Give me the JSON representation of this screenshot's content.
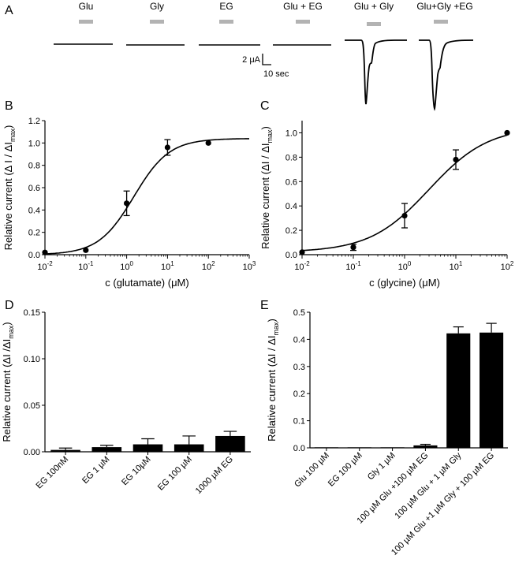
{
  "panel_labels": [
    "A",
    "B",
    "C",
    "D",
    "E"
  ],
  "colors": {
    "ink": "#000000",
    "stimulus_bar": "#b3b3b3",
    "stimulus_text": "#333333"
  },
  "panelA": {
    "stimuli": [
      "Glu",
      "Gly",
      "EG",
      "Glu + EG",
      "Glu + Gly",
      "Glu+Gly +EG"
    ],
    "scale_bar": {
      "current_label": "2 μA",
      "time_label": "10 sec"
    }
  },
  "chart_data": [
    {
      "panel": "B",
      "type": "scatter",
      "xscale": "log",
      "xlim": [
        0.01,
        1000
      ],
      "ylim": [
        0,
        1.2
      ],
      "xticks": [
        0.01,
        0.1,
        1,
        10,
        100,
        1000
      ],
      "xtick_labels": [
        {
          "base": "10",
          "exp": "-2"
        },
        {
          "base": "10",
          "exp": "-1"
        },
        {
          "base": "10",
          "exp": "0"
        },
        {
          "base": "10",
          "exp": "1"
        },
        {
          "base": "10",
          "exp": "2"
        },
        {
          "base": "10",
          "exp": "3"
        }
      ],
      "yticks": [
        0,
        0.2,
        0.4,
        0.6,
        0.8,
        1,
        1.2
      ],
      "ytick_labels": [
        "0.0",
        "0.2",
        "0.4",
        "0.6",
        "0.8",
        "1.0",
        "1.2"
      ],
      "xlabel": "c (glutamate) (μM)",
      "ylabel": {
        "main": "Relative current (Δ I / ΔI",
        "sub": "max",
        "close": ")"
      },
      "points": [
        {
          "x": 0.01,
          "y": 0.02,
          "err": 0
        },
        {
          "x": 0.1,
          "y": 0.04,
          "err": 0
        },
        {
          "x": 1,
          "y": 0.46,
          "err": 0.11
        },
        {
          "x": 10,
          "y": 0.96,
          "err": 0.07
        },
        {
          "x": 100,
          "y": 1.0,
          "err": 0
        }
      ],
      "fit": {
        "bottom": 0.0,
        "top": 1.04,
        "ec50": 1.5,
        "hill": 1.0
      }
    },
    {
      "panel": "C",
      "type": "scatter",
      "xscale": "log",
      "xlim": [
        0.01,
        100
      ],
      "ylim": [
        0,
        1.1
      ],
      "xticks": [
        0.01,
        0.1,
        1,
        10,
        100
      ],
      "xtick_labels": [
        {
          "base": "10",
          "exp": "-2"
        },
        {
          "base": "10",
          "exp": "-1"
        },
        {
          "base": "10",
          "exp": "0"
        },
        {
          "base": "10",
          "exp": "1"
        },
        {
          "base": "10",
          "exp": "2"
        }
      ],
      "yticks": [
        0,
        0.2,
        0.4,
        0.6,
        0.8,
        1
      ],
      "ytick_labels": [
        "0.0",
        "0.2",
        "0.4",
        "0.6",
        "0.8",
        "1.0"
      ],
      "xlabel": "c (glycine) (μM)",
      "ylabel": {
        "main": "Relative current (ΔI / ΔI",
        "sub": "max",
        "close": ")"
      },
      "points": [
        {
          "x": 0.01,
          "y": 0.02,
          "err": 0
        },
        {
          "x": 0.1,
          "y": 0.06,
          "err": 0.025
        },
        {
          "x": 1,
          "y": 0.32,
          "err": 0.1
        },
        {
          "x": 10,
          "y": 0.78,
          "err": 0.08
        },
        {
          "x": 100,
          "y": 1.0,
          "err": 0
        }
      ],
      "fit": {
        "bottom": 0.02,
        "top": 1.05,
        "ec50": 3.0,
        "hill": 0.75
      }
    },
    {
      "panel": "D",
      "type": "bar",
      "ylim": [
        0,
        0.15
      ],
      "yticks": [
        0,
        0.05,
        0.1,
        0.15
      ],
      "ytick_labels": [
        "0.00",
        "0.05",
        "0.10",
        "0.15"
      ],
      "ylabel": {
        "main": "Relative current (ΔI /ΔI",
        "sub": "max",
        "close": ")"
      },
      "categories": [
        "EG 100nM",
        "EG 1 µM",
        "EG 10µM",
        "EG 100 µM",
        "1000 µM EG"
      ],
      "values": [
        0.002,
        0.005,
        0.008,
        0.008,
        0.017
      ],
      "errors": [
        0.002,
        0.002,
        0.006,
        0.009,
        0.005
      ]
    },
    {
      "panel": "E",
      "type": "bar",
      "ylim": [
        0,
        0.5
      ],
      "yticks": [
        0,
        0.1,
        0.2,
        0.3,
        0.4,
        0.5
      ],
      "ytick_labels": [
        "0.0",
        "0.1",
        "0.2",
        "0.3",
        "0.4",
        "0.5"
      ],
      "ylabel": {
        "main": "Relative current (ΔI / ΔI",
        "sub": "max",
        "close": ")"
      },
      "categories": [
        "Glu 100 µM",
        "EG 100 µM",
        "Gly 1 µM",
        "100 µM Glu +100 µM EG",
        "100 µM Glu + 1 µM Gly",
        "100 µM Glu +1 µM Gly + 100 µM EG"
      ],
      "values": [
        0.002,
        0.002,
        0.002,
        0.009,
        0.422,
        0.425
      ],
      "errors": [
        0,
        0,
        0,
        0.004,
        0.024,
        0.034
      ]
    }
  ]
}
